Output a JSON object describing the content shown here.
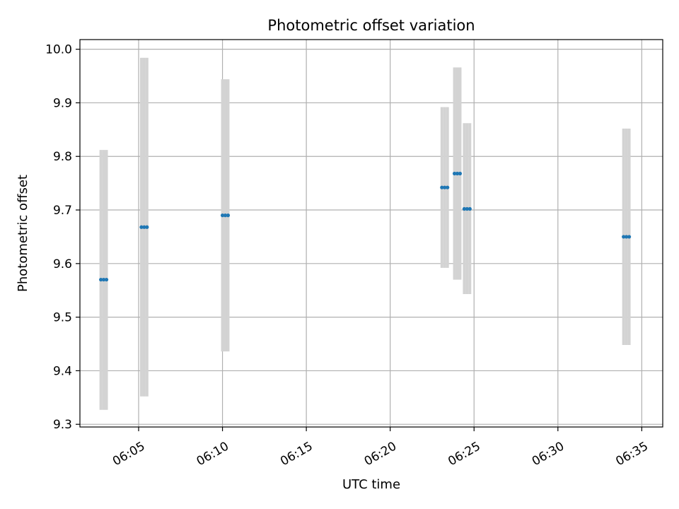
{
  "chart_data": {
    "type": "scatter",
    "title": "Photometric offset variation",
    "xlabel": "UTC time",
    "ylabel": "Photometric offset",
    "xlim": [
      "06:01:30",
      "06:36:15"
    ],
    "ylim": [
      9.295,
      10.018
    ],
    "xticks": [
      "06:05",
      "06:10",
      "06:15",
      "06:20",
      "06:25",
      "06:30",
      "06:35"
    ],
    "yticks": [
      "9.3",
      "9.4",
      "9.5",
      "9.6",
      "9.7",
      "9.8",
      "9.9",
      "10.0"
    ],
    "grid": true,
    "colors": {
      "point": "#1f77b4",
      "errorbar": "#d3d3d3",
      "grid": "#b0b0b0"
    },
    "points": [
      {
        "x": "06:02:45",
        "y": 9.57,
        "ymin": 9.327,
        "ymax": 9.812
      },
      {
        "x": "06:02:55",
        "y": 9.57,
        "ymin": 9.327,
        "ymax": 9.812
      },
      {
        "x": "06:03:05",
        "y": 9.57,
        "ymin": 9.327,
        "ymax": 9.812
      },
      {
        "x": "06:05:10",
        "y": 9.668,
        "ymin": 9.352,
        "ymax": 9.984
      },
      {
        "x": "06:05:20",
        "y": 9.668,
        "ymin": 9.352,
        "ymax": 9.984
      },
      {
        "x": "06:05:30",
        "y": 9.668,
        "ymin": 9.352,
        "ymax": 9.984
      },
      {
        "x": "06:10:00",
        "y": 9.69,
        "ymin": 9.436,
        "ymax": 9.944
      },
      {
        "x": "06:10:10",
        "y": 9.69,
        "ymin": 9.436,
        "ymax": 9.944
      },
      {
        "x": "06:10:20",
        "y": 9.69,
        "ymin": 9.436,
        "ymax": 9.944
      },
      {
        "x": "06:23:05",
        "y": 9.742,
        "ymin": 9.592,
        "ymax": 9.892
      },
      {
        "x": "06:23:15",
        "y": 9.742,
        "ymin": 9.592,
        "ymax": 9.892
      },
      {
        "x": "06:23:25",
        "y": 9.742,
        "ymin": 9.592,
        "ymax": 9.892
      },
      {
        "x": "06:23:50",
        "y": 9.768,
        "ymin": 9.57,
        "ymax": 9.966
      },
      {
        "x": "06:24:00",
        "y": 9.768,
        "ymin": 9.57,
        "ymax": 9.966
      },
      {
        "x": "06:24:10",
        "y": 9.768,
        "ymin": 9.57,
        "ymax": 9.966
      },
      {
        "x": "06:24:25",
        "y": 9.702,
        "ymin": 9.543,
        "ymax": 9.862
      },
      {
        "x": "06:24:35",
        "y": 9.702,
        "ymin": 9.543,
        "ymax": 9.862
      },
      {
        "x": "06:24:45",
        "y": 9.702,
        "ymin": 9.543,
        "ymax": 9.862
      },
      {
        "x": "06:33:55",
        "y": 9.65,
        "ymin": 9.448,
        "ymax": 9.852
      },
      {
        "x": "06:34:05",
        "y": 9.65,
        "ymin": 9.448,
        "ymax": 9.852
      },
      {
        "x": "06:34:15",
        "y": 9.65,
        "ymin": 9.448,
        "ymax": 9.852
      }
    ]
  }
}
